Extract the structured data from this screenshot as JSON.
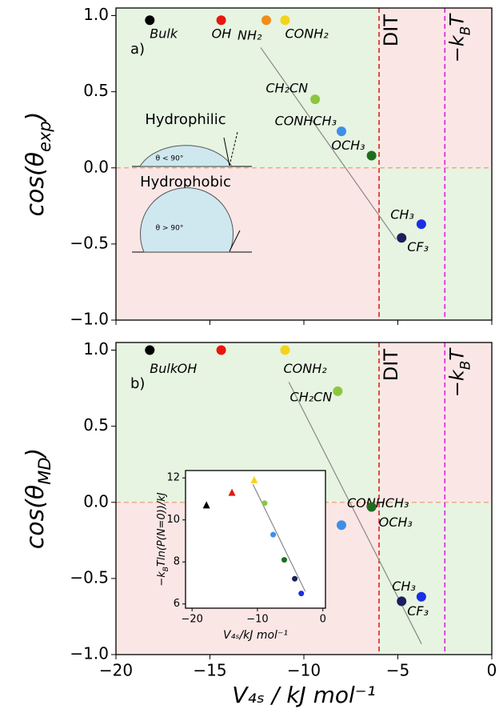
{
  "chart_data": [
    {
      "type": "scatter",
      "panel": "a)",
      "xlim": [
        -20,
        0
      ],
      "ylim": [
        -1,
        1.05
      ],
      "xticks": [
        -20,
        -15,
        -10,
        -5,
        0
      ],
      "yticks": [
        {
          "value": 1,
          "label": "1.0"
        },
        {
          "value": 0.5,
          "label": "0.5"
        },
        {
          "value": 0,
          "label": "0.0"
        },
        {
          "value": -0.5,
          "label": "−0.5"
        },
        {
          "value": -1,
          "label": "−1.0"
        }
      ],
      "ylabel": [
        "cos(θ",
        "exp",
        ")"
      ],
      "labels": [
        "Bulk",
        "OH",
        "NH₂",
        "CONH₂",
        "CH₂CN",
        "CONHCH₃",
        "OCH₃",
        "CH₃",
        "CF₃"
      ],
      "x": [
        -18.2,
        -14.4,
        -12.0,
        -11.0,
        -9.4,
        -8.0,
        -6.4,
        -3.75,
        -4.8
      ],
      "values": [
        0.97,
        0.97,
        0.97,
        0.97,
        0.45,
        0.24,
        0.08,
        -0.37,
        -0.46
      ],
      "colors": [
        "#000000",
        "#e8160c",
        "#f28c1b",
        "#f5d31a",
        "#8cc63f",
        "#3f8fe8",
        "#1f6e1f",
        "#1a2ee6",
        "#1b1f5e"
      ],
      "fit": {
        "x": [
          -12.3,
          -5.1
        ],
        "y": [
          0.79,
          -0.47
        ]
      },
      "hline": 0,
      "vlines": [
        {
          "x": -6,
          "label": "DIT",
          "color": "#e0201b"
        },
        {
          "x": -2.5,
          "label": [
            "−k",
            "B",
            "T"
          ],
          "color": "#e020e0"
        }
      ],
      "annotations": [
        "Hydrophilic",
        "Hydrophobic",
        "θ < 90°",
        "θ > 90°"
      ]
    },
    {
      "type": "scatter",
      "panel": "b)",
      "xlim": [
        -20,
        0
      ],
      "ylim": [
        -1,
        1.05
      ],
      "xticks": [
        {
          "value": -20,
          "label": "−20"
        },
        {
          "value": -15,
          "label": "−15"
        },
        {
          "value": -10,
          "label": "−10"
        },
        {
          "value": -5,
          "label": "−5"
        },
        {
          "value": 0,
          "label": "0"
        }
      ],
      "yticks": [
        {
          "value": 1,
          "label": "1.0"
        },
        {
          "value": 0.5,
          "label": "0.5"
        },
        {
          "value": 0,
          "label": "0.0"
        },
        {
          "value": -0.5,
          "label": "−0.5"
        },
        {
          "value": -1,
          "label": "−1.0"
        }
      ],
      "xlabel": "V₄ₛ / kJ mol⁻¹",
      "ylabel": [
        "cos(θ",
        "MD",
        ")"
      ],
      "labels": [
        "Bulk",
        "OH",
        "CONH₂",
        "CH₂CN",
        "CONHCH₃",
        "OCH₃",
        "CH₃",
        "CF₃"
      ],
      "x": [
        -18.2,
        -14.4,
        -11.0,
        -8.2,
        -8.0,
        -6.4,
        -3.75,
        -4.8
      ],
      "values": [
        1.0,
        1.0,
        1.0,
        0.73,
        -0.15,
        -0.03,
        -0.62,
        -0.65
      ],
      "colors": [
        "#000000",
        "#e8160c",
        "#f5d31a",
        "#8cc63f",
        "#3f8fe8",
        "#1f6e1f",
        "#1a2ee6",
        "#1b1f5e"
      ],
      "fit": {
        "x": [
          -10.8,
          -3.74
        ],
        "y": [
          0.79,
          -0.93
        ]
      },
      "hline": 0,
      "vlines": [
        {
          "x": -6,
          "label": "DIT",
          "color": "#e0201b"
        },
        {
          "x": -2.5,
          "label": [
            "−k",
            "B",
            "T"
          ],
          "color": "#e020e0"
        }
      ]
    },
    {
      "type": "scatter",
      "inset": true,
      "xlim": [
        -21,
        0.4
      ],
      "ylim": [
        5.8,
        12.35
      ],
      "xticks": [
        {
          "value": -20,
          "label": "−20"
        },
        {
          "value": -10,
          "label": "−10"
        },
        0
      ],
      "yticks": [
        6,
        8,
        10,
        12
      ],
      "xlabel": "V₄ₛ/kJ mol⁻¹",
      "ylabel": [
        "−k",
        "B",
        "Tln(P(N=0))/kJ"
      ],
      "x": [
        -17.8,
        -13.9,
        -10.5,
        -8.9,
        -7.6,
        -5.9,
        -4.3,
        -3.3
      ],
      "values": [
        10.7,
        11.3,
        11.9,
        10.8,
        9.3,
        8.1,
        7.2,
        6.5
      ],
      "markers": [
        "triangle",
        "triangle",
        "triangle",
        "circle",
        "circle",
        "circle",
        "circle",
        "circle"
      ],
      "colors": [
        "#000000",
        "#e8160c",
        "#f5d31a",
        "#8cc63f",
        "#3f8fe8",
        "#1f6e1f",
        "#1b1f5e",
        "#1a2ee6"
      ],
      "fit": {
        "x": [
          -10.7,
          -2.7
        ],
        "y": [
          11.7,
          6.6
        ]
      }
    }
  ]
}
